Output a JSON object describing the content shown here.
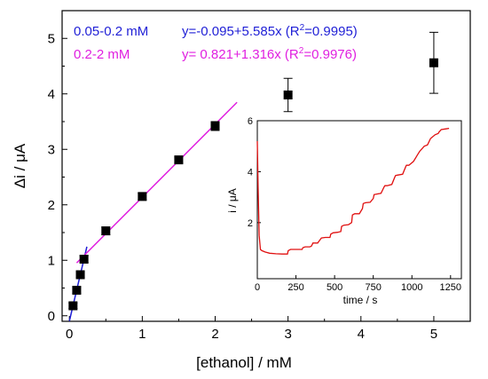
{
  "chart_data": [
    {
      "type": "scatter",
      "xlabel": "[ethanol] / mM",
      "ylabel": "Δi / μA",
      "xlim": [
        -0.1,
        5.5
      ],
      "ylim": [
        -0.1,
        5.5
      ],
      "xticks": [
        "0",
        "1",
        "2",
        "3",
        "4",
        "5"
      ],
      "yticks": [
        "0",
        "1",
        "2",
        "3",
        "4",
        "5"
      ],
      "series": [
        {
          "name": "",
          "color": "#000000",
          "marker": "square",
          "points": [
            {
              "x": 0.05,
              "y": 0.18,
              "err": 0.05
            },
            {
              "x": 0.1,
              "y": 0.46,
              "err": 0.05
            },
            {
              "x": 0.15,
              "y": 0.74,
              "err": 0.05
            },
            {
              "x": 0.2,
              "y": 1.02,
              "err": 0.06
            },
            {
              "x": 0.5,
              "y": 1.53,
              "err": 0.07
            },
            {
              "x": 1.0,
              "y": 2.15,
              "err": 0.06
            },
            {
              "x": 1.5,
              "y": 2.81,
              "err": 0.05
            },
            {
              "x": 2.0,
              "y": 3.42,
              "err": 0.08
            },
            {
              "x": 3.0,
              "y": 3.98,
              "err": 0.3
            },
            {
              "x": 5.0,
              "y": 4.56,
              "err": 0.55
            }
          ]
        }
      ],
      "fits": [
        {
          "color": "#1f1fd6",
          "intercept": -0.095,
          "slope": 5.585,
          "x": [
            0.0,
            0.24
          ]
        },
        {
          "color": "#e020e0",
          "intercept": 0.821,
          "slope": 1.316,
          "x": [
            0.1,
            2.3
          ]
        }
      ],
      "annotations": [
        {
          "range": "0.05-0.2 mM",
          "equation": "y=-0.095+5.585x (R",
          "sup": "2",
          "tail": "=0.9995)",
          "color": "#1f1fd6"
        },
        {
          "range": "0.2-2 mM",
          "equation": "y= 0.821+1.316x (R",
          "sup": "2",
          "tail": "=0.9976)",
          "color": "#e020e0"
        }
      ]
    },
    {
      "type": "line",
      "xlabel": "time / s",
      "ylabel": "i / μA",
      "xlim": [
        0,
        1320
      ],
      "ylim": [
        -0.2,
        6
      ],
      "xticks": [
        "0",
        "250",
        "500",
        "750",
        "1000",
        "1250"
      ],
      "yticks": [
        "2",
        "4",
        "6"
      ],
      "series": [
        {
          "name": "",
          "color": "#e01010",
          "x": [
            0,
            5,
            12,
            20,
            30,
            50,
            80,
            120,
            160,
            195,
            200,
            215,
            240,
            270,
            290,
            295,
            310,
            340,
            350,
            360,
            390,
            400,
            415,
            440,
            470,
            475,
            490,
            520,
            540,
            545,
            560,
            590,
            610,
            615,
            630,
            660,
            680,
            685,
            700,
            730,
            750,
            755,
            770,
            800,
            820,
            825,
            840,
            870,
            890,
            895,
            910,
            940,
            960,
            965,
            980,
            1010,
            1030,
            1035,
            1050,
            1080,
            1100,
            1105,
            1120,
            1150,
            1170,
            1175,
            1190,
            1220,
            1240
          ],
          "y": [
            5.2,
            3.4,
            1.5,
            0.95,
            0.9,
            0.85,
            0.8,
            0.78,
            0.77,
            0.77,
            0.9,
            0.95,
            0.95,
            0.95,
            0.95,
            1.02,
            1.05,
            1.05,
            1.08,
            1.2,
            1.2,
            1.28,
            1.4,
            1.42,
            1.42,
            1.55,
            1.6,
            1.62,
            1.65,
            1.85,
            1.9,
            1.92,
            2.0,
            2.3,
            2.35,
            2.35,
            2.55,
            2.75,
            2.78,
            2.8,
            2.95,
            3.1,
            3.12,
            3.15,
            3.4,
            3.45,
            3.45,
            3.5,
            3.8,
            3.85,
            3.87,
            3.9,
            4.2,
            4.25,
            4.25,
            4.4,
            4.6,
            4.65,
            4.8,
            5.0,
            5.05,
            5.1,
            5.3,
            5.45,
            5.5,
            5.55,
            5.65,
            5.68,
            5.7
          ]
        }
      ]
    }
  ]
}
